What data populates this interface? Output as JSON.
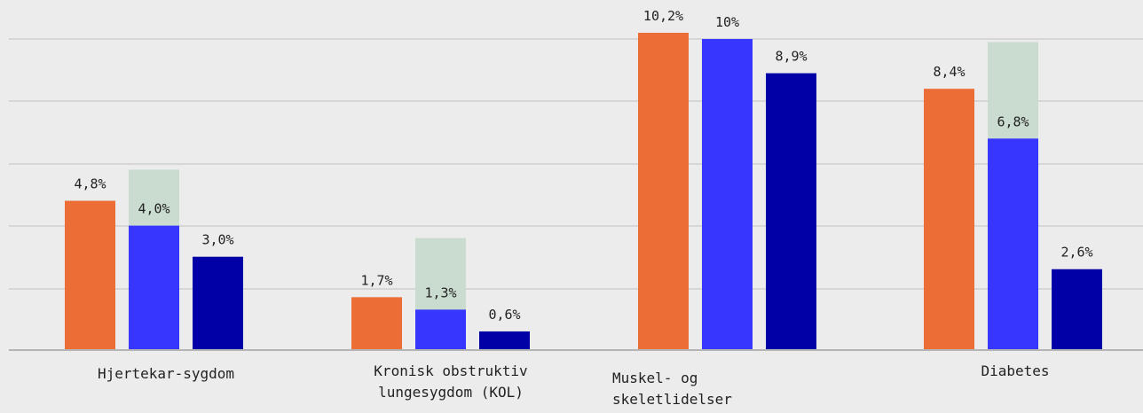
{
  "chart_data": {
    "type": "bar",
    "categories": [
      [
        "Hjertekar-sygdom"
      ],
      [
        "Kronisk obstruktiv",
        "lungesygdom (KOL)"
      ],
      [
        "Muskel- og",
        "skeletlidelser"
      ],
      [
        "Diabetes"
      ]
    ],
    "series": [
      {
        "values": [
          4.8,
          1.7,
          10.2,
          8.4
        ],
        "labels": [
          "4,8%",
          "1,7%",
          "10,2%",
          "8,4%"
        ],
        "color": "#ed6d37"
      },
      {
        "values": [
          4.0,
          1.3,
          10.0,
          6.8
        ],
        "labels": [
          "4,0%",
          "1,3%",
          "10%",
          "6,8%"
        ],
        "color": "#3636ff",
        "band": [
          [
            3.0,
            5.8
          ],
          [
            1.1,
            3.6
          ],
          null,
          [
            6.8,
            9.9
          ]
        ],
        "band_color": "#c9dccf"
      },
      {
        "values": [
          3.0,
          0.6,
          8.9,
          2.6
        ],
        "labels": [
          "3,0%",
          "0,6%",
          "8,9%",
          "2,6%"
        ],
        "color": "#0000a6"
      }
    ],
    "ylim": [
      0,
      10.2
    ],
    "grid": true,
    "legend": "none",
    "colors": {
      "background": "#ececec",
      "grid": "#d6d6d6",
      "axis": "#b5b5b5"
    }
  }
}
